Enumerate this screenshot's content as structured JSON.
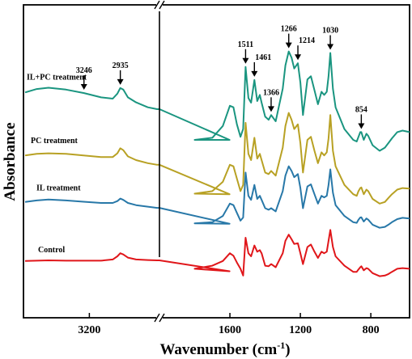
{
  "chart_data": {
    "type": "line",
    "title": "",
    "xlabel": "Wavenumber (cm",
    "xlabel_sup": "-1",
    "xlabel_end": ")",
    "ylabel": "Absorbance",
    "x_reversed": true,
    "x_break": true,
    "x_segments": [
      {
        "xlim": [
          3750,
          2600
        ]
      },
      {
        "xlim": [
          2000,
          580
        ]
      }
    ],
    "xticks": [
      3200,
      1600,
      1200,
      800
    ],
    "yticks_shown": false,
    "grid": false,
    "legend": "none",
    "series": [
      {
        "name": "IL+PC treatment",
        "color": "#1a9580",
        "points": [
          [
            3750,
            0.718
          ],
          [
            3650,
            0.729
          ],
          [
            3550,
            0.733
          ],
          [
            3400,
            0.727
          ],
          [
            3246,
            0.716
          ],
          [
            3100,
            0.702
          ],
          [
            3000,
            0.698
          ],
          [
            2960,
            0.714
          ],
          [
            2935,
            0.732
          ],
          [
            2910,
            0.727
          ],
          [
            2870,
            0.702
          ],
          [
            2800,
            0.686
          ],
          [
            2700,
            0.67
          ],
          [
            2620,
            0.664
          ],
          [
            2600,
            0.664
          ],
          [
            2000,
            0.565
          ],
          [
            1800,
            0.565
          ],
          [
            1700,
            0.572
          ],
          [
            1640,
            0.61
          ],
          [
            1600,
            0.675
          ],
          [
            1580,
            0.67
          ],
          [
            1560,
            0.615
          ],
          [
            1540,
            0.575
          ],
          [
            1525,
            0.6
          ],
          [
            1511,
            0.8
          ],
          [
            1495,
            0.7
          ],
          [
            1480,
            0.685
          ],
          [
            1461,
            0.758
          ],
          [
            1445,
            0.69
          ],
          [
            1430,
            0.71
          ],
          [
            1420,
            0.685
          ],
          [
            1400,
            0.64
          ],
          [
            1380,
            0.63
          ],
          [
            1366,
            0.645
          ],
          [
            1340,
            0.625
          ],
          [
            1300,
            0.73
          ],
          [
            1285,
            0.805
          ],
          [
            1266,
            0.85
          ],
          [
            1250,
            0.83
          ],
          [
            1235,
            0.795
          ],
          [
            1214,
            0.812
          ],
          [
            1200,
            0.75
          ],
          [
            1185,
            0.645
          ],
          [
            1160,
            0.76
          ],
          [
            1140,
            0.77
          ],
          [
            1120,
            0.725
          ],
          [
            1100,
            0.68
          ],
          [
            1080,
            0.72
          ],
          [
            1065,
            0.71
          ],
          [
            1050,
            0.72
          ],
          [
            1040,
            0.77
          ],
          [
            1030,
            0.845
          ],
          [
            1015,
            0.73
          ],
          [
            1000,
            0.67
          ],
          [
            950,
            0.6
          ],
          [
            900,
            0.565
          ],
          [
            880,
            0.56
          ],
          [
            870,
            0.575
          ],
          [
            860,
            0.59
          ],
          [
            854,
            0.59
          ],
          [
            840,
            0.565
          ],
          [
            825,
            0.585
          ],
          [
            815,
            0.578
          ],
          [
            790,
            0.548
          ],
          [
            750,
            0.53
          ],
          [
            720,
            0.54
          ],
          [
            700,
            0.555
          ],
          [
            680,
            0.57
          ],
          [
            650,
            0.59
          ],
          [
            620,
            0.595
          ],
          [
            580,
            0.59
          ]
        ]
      },
      {
        "name": "PC treatment",
        "color": "#b8a124",
        "points": [
          [
            3750,
            0.515
          ],
          [
            3650,
            0.52
          ],
          [
            3550,
            0.522
          ],
          [
            3400,
            0.52
          ],
          [
            3250,
            0.515
          ],
          [
            3100,
            0.51
          ],
          [
            3000,
            0.51
          ],
          [
            2960,
            0.522
          ],
          [
            2935,
            0.538
          ],
          [
            2910,
            0.532
          ],
          [
            2870,
            0.512
          ],
          [
            2800,
            0.5
          ],
          [
            2700,
            0.49
          ],
          [
            2620,
            0.485
          ],
          [
            2600,
            0.485
          ],
          [
            2000,
            0.39
          ],
          [
            1800,
            0.392
          ],
          [
            1700,
            0.4
          ],
          [
            1640,
            0.43
          ],
          [
            1600,
            0.485
          ],
          [
            1580,
            0.48
          ],
          [
            1560,
            0.44
          ],
          [
            1540,
            0.4
          ],
          [
            1525,
            0.42
          ],
          [
            1511,
            0.62
          ],
          [
            1495,
            0.52
          ],
          [
            1480,
            0.5
          ],
          [
            1461,
            0.572
          ],
          [
            1445,
            0.505
          ],
          [
            1430,
            0.52
          ],
          [
            1420,
            0.5
          ],
          [
            1400,
            0.46
          ],
          [
            1380,
            0.455
          ],
          [
            1366,
            0.465
          ],
          [
            1340,
            0.45
          ],
          [
            1300,
            0.54
          ],
          [
            1285,
            0.61
          ],
          [
            1266,
            0.652
          ],
          [
            1250,
            0.63
          ],
          [
            1235,
            0.6
          ],
          [
            1214,
            0.615
          ],
          [
            1200,
            0.555
          ],
          [
            1185,
            0.46
          ],
          [
            1160,
            0.565
          ],
          [
            1140,
            0.575
          ],
          [
            1120,
            0.53
          ],
          [
            1100,
            0.49
          ],
          [
            1080,
            0.525
          ],
          [
            1065,
            0.515
          ],
          [
            1050,
            0.525
          ],
          [
            1040,
            0.57
          ],
          [
            1030,
            0.645
          ],
          [
            1015,
            0.53
          ],
          [
            1000,
            0.48
          ],
          [
            950,
            0.42
          ],
          [
            900,
            0.39
          ],
          [
            880,
            0.385
          ],
          [
            870,
            0.4
          ],
          [
            860,
            0.41
          ],
          [
            854,
            0.412
          ],
          [
            840,
            0.39
          ],
          [
            825,
            0.405
          ],
          [
            815,
            0.4
          ],
          [
            790,
            0.375
          ],
          [
            750,
            0.36
          ],
          [
            720,
            0.365
          ],
          [
            700,
            0.378
          ],
          [
            680,
            0.39
          ],
          [
            650,
            0.405
          ],
          [
            620,
            0.41
          ],
          [
            580,
            0.408
          ]
        ]
      },
      {
        "name": "IL treatment",
        "color": "#2878a8",
        "points": [
          [
            3750,
            0.365
          ],
          [
            3650,
            0.37
          ],
          [
            3550,
            0.373
          ],
          [
            3400,
            0.37
          ],
          [
            3250,
            0.366
          ],
          [
            3100,
            0.362
          ],
          [
            3000,
            0.362
          ],
          [
            2960,
            0.368
          ],
          [
            2935,
            0.376
          ],
          [
            2910,
            0.372
          ],
          [
            2870,
            0.362
          ],
          [
            2800,
            0.355
          ],
          [
            2700,
            0.35
          ],
          [
            2620,
            0.346
          ],
          [
            2600,
            0.346
          ],
          [
            2000,
            0.295
          ],
          [
            1800,
            0.296
          ],
          [
            1700,
            0.3
          ],
          [
            1640,
            0.32
          ],
          [
            1600,
            0.36
          ],
          [
            1580,
            0.355
          ],
          [
            1560,
            0.33
          ],
          [
            1540,
            0.305
          ],
          [
            1525,
            0.315
          ],
          [
            1511,
            0.46
          ],
          [
            1495,
            0.385
          ],
          [
            1480,
            0.372
          ],
          [
            1461,
            0.42
          ],
          [
            1445,
            0.375
          ],
          [
            1430,
            0.385
          ],
          [
            1420,
            0.372
          ],
          [
            1400,
            0.345
          ],
          [
            1380,
            0.34
          ],
          [
            1366,
            0.345
          ],
          [
            1340,
            0.335
          ],
          [
            1300,
            0.4
          ],
          [
            1285,
            0.45
          ],
          [
            1266,
            0.48
          ],
          [
            1250,
            0.465
          ],
          [
            1235,
            0.445
          ],
          [
            1214,
            0.455
          ],
          [
            1200,
            0.41
          ],
          [
            1185,
            0.345
          ],
          [
            1160,
            0.415
          ],
          [
            1140,
            0.422
          ],
          [
            1120,
            0.39
          ],
          [
            1100,
            0.36
          ],
          [
            1080,
            0.385
          ],
          [
            1065,
            0.38
          ],
          [
            1050,
            0.385
          ],
          [
            1040,
            0.42
          ],
          [
            1030,
            0.47
          ],
          [
            1015,
            0.395
          ],
          [
            1000,
            0.355
          ],
          [
            950,
            0.32
          ],
          [
            900,
            0.3
          ],
          [
            880,
            0.298
          ],
          [
            870,
            0.308
          ],
          [
            860,
            0.315
          ],
          [
            854,
            0.316
          ],
          [
            840,
            0.302
          ],
          [
            825,
            0.312
          ],
          [
            815,
            0.308
          ],
          [
            790,
            0.292
          ],
          [
            750,
            0.282
          ],
          [
            720,
            0.285
          ],
          [
            700,
            0.292
          ],
          [
            680,
            0.3
          ],
          [
            650,
            0.31
          ],
          [
            620,
            0.314
          ],
          [
            580,
            0.312
          ]
        ]
      },
      {
        "name": "Control",
        "color": "#e0161a",
        "points": [
          [
            3750,
            0.175
          ],
          [
            3650,
            0.176
          ],
          [
            3550,
            0.177
          ],
          [
            3400,
            0.176
          ],
          [
            3250,
            0.176
          ],
          [
            3100,
            0.176
          ],
          [
            3000,
            0.18
          ],
          [
            2960,
            0.19
          ],
          [
            2935,
            0.2
          ],
          [
            2910,
            0.196
          ],
          [
            2870,
            0.186
          ],
          [
            2800,
            0.18
          ],
          [
            2700,
            0.178
          ],
          [
            2620,
            0.177
          ],
          [
            2600,
            0.177
          ],
          [
            2000,
            0.142
          ],
          [
            1800,
            0.15
          ],
          [
            1700,
            0.16
          ],
          [
            1640,
            0.175
          ],
          [
            1600,
            0.2
          ],
          [
            1580,
            0.192
          ],
          [
            1560,
            0.17
          ],
          [
            1540,
            0.15
          ],
          [
            1525,
            0.128
          ],
          [
            1511,
            0.25
          ],
          [
            1495,
            0.2
          ],
          [
            1480,
            0.19
          ],
          [
            1461,
            0.225
          ],
          [
            1445,
            0.205
          ],
          [
            1430,
            0.21
          ],
          [
            1420,
            0.2
          ],
          [
            1400,
            0.16
          ],
          [
            1380,
            0.158
          ],
          [
            1366,
            0.165
          ],
          [
            1340,
            0.155
          ],
          [
            1300,
            0.2
          ],
          [
            1285,
            0.24
          ],
          [
            1266,
            0.26
          ],
          [
            1250,
            0.245
          ],
          [
            1235,
            0.23
          ],
          [
            1214,
            0.232
          ],
          [
            1200,
            0.2
          ],
          [
            1185,
            0.165
          ],
          [
            1160,
            0.22
          ],
          [
            1140,
            0.228
          ],
          [
            1120,
            0.205
          ],
          [
            1100,
            0.185
          ],
          [
            1080,
            0.205
          ],
          [
            1065,
            0.2
          ],
          [
            1050,
            0.205
          ],
          [
            1040,
            0.24
          ],
          [
            1030,
            0.275
          ],
          [
            1015,
            0.22
          ],
          [
            1000,
            0.19
          ],
          [
            950,
            0.16
          ],
          [
            900,
            0.14
          ],
          [
            880,
            0.14
          ],
          [
            870,
            0.148
          ],
          [
            860,
            0.155
          ],
          [
            854,
            0.158
          ],
          [
            840,
            0.145
          ],
          [
            825,
            0.152
          ],
          [
            815,
            0.15
          ],
          [
            790,
            0.136
          ],
          [
            750,
            0.126
          ],
          [
            720,
            0.128
          ],
          [
            700,
            0.133
          ],
          [
            680,
            0.14
          ],
          [
            650,
            0.15
          ],
          [
            620,
            0.152
          ],
          [
            580,
            0.15
          ]
        ]
      }
    ],
    "peak_annotations": [
      {
        "label": "3246",
        "x": 3246,
        "series": 0
      },
      {
        "label": "2935",
        "x": 2935,
        "series": 0
      },
      {
        "label": "1511",
        "x": 1511,
        "series": 0
      },
      {
        "label": "1461",
        "x": 1461,
        "series": 0
      },
      {
        "label": "1366",
        "x": 1366,
        "series": 0
      },
      {
        "label": "1266",
        "x": 1266,
        "series": 0
      },
      {
        "label": "1214",
        "x": 1214,
        "series": 0
      },
      {
        "label": "1030",
        "x": 1030,
        "series": 0
      },
      {
        "label": "854",
        "x": 854,
        "series": 0
      }
    ]
  }
}
